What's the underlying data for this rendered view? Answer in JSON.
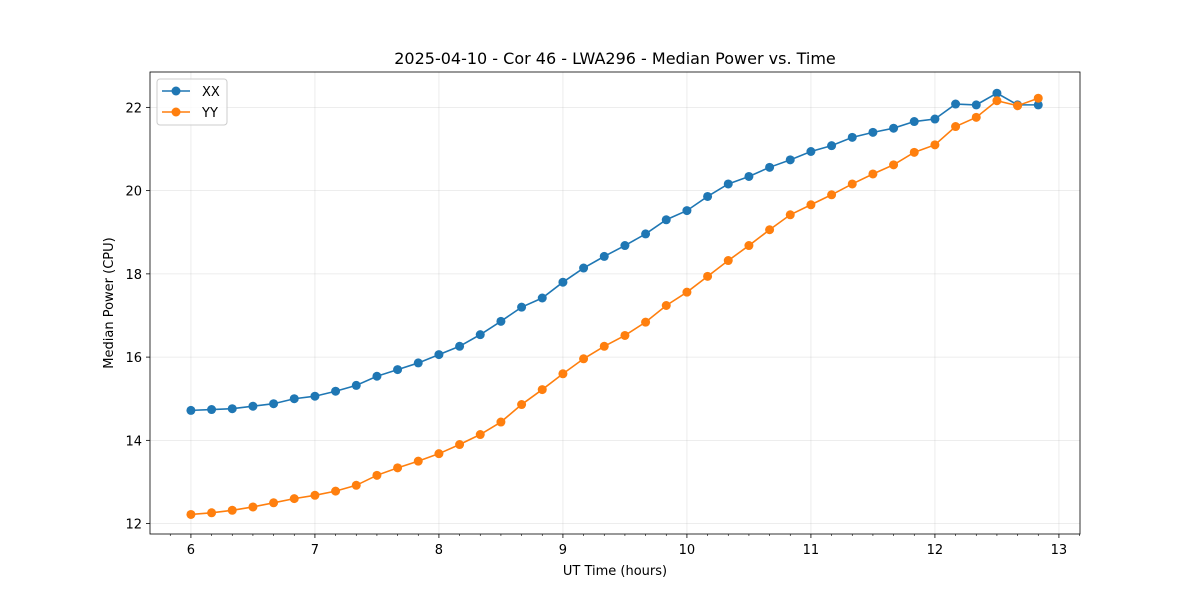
{
  "chart_data": {
    "type": "line",
    "title": "2025-04-10 - Cor 46 - LWA296 - Median Power vs. Time",
    "xlabel": "UT Time (hours)",
    "ylabel": "Median Power (CPU)",
    "xlim": [
      5.67,
      13.17
    ],
    "ylim": [
      11.75,
      22.85
    ],
    "xticks": [
      6,
      7,
      8,
      9,
      10,
      11,
      12,
      13
    ],
    "yticks": [
      12,
      14,
      16,
      18,
      20,
      22
    ],
    "grid": true,
    "legend_position": "top-left",
    "x": [
      6.0,
      6.1667,
      6.3333,
      6.5,
      6.6667,
      6.8333,
      7.0,
      7.1667,
      7.3333,
      7.5,
      7.6667,
      7.8333,
      8.0,
      8.1667,
      8.3333,
      8.5,
      8.6667,
      8.8333,
      9.0,
      9.1667,
      9.3333,
      9.5,
      9.6667,
      9.8333,
      10.0,
      10.1667,
      10.3333,
      10.5,
      10.6667,
      10.8333,
      11.0,
      11.1667,
      11.3333,
      11.5,
      11.6667,
      11.8333,
      12.0,
      12.1667,
      12.3333,
      12.5,
      12.6667,
      12.8333
    ],
    "series": [
      {
        "name": "XX",
        "color": "#1f77b4",
        "values": [
          14.72,
          14.74,
          14.76,
          14.82,
          14.88,
          15.0,
          15.06,
          15.18,
          15.32,
          15.54,
          15.7,
          15.86,
          16.06,
          16.26,
          16.54,
          16.86,
          17.2,
          17.42,
          17.8,
          18.14,
          18.42,
          18.68,
          18.96,
          19.3,
          19.52,
          19.86,
          20.16,
          20.34,
          20.56,
          20.74,
          20.94,
          21.08,
          21.28,
          21.4,
          21.5,
          21.66,
          21.72,
          22.08,
          22.06,
          22.34,
          22.06,
          22.06
        ]
      },
      {
        "name": "YY",
        "color": "#ff7f0e",
        "values": [
          12.22,
          12.26,
          12.32,
          12.4,
          12.5,
          12.6,
          12.68,
          12.78,
          12.92,
          13.16,
          13.34,
          13.5,
          13.68,
          13.9,
          14.14,
          14.44,
          14.86,
          15.22,
          15.6,
          15.96,
          16.26,
          16.52,
          16.84,
          17.24,
          17.56,
          17.94,
          18.32,
          18.68,
          19.06,
          19.42,
          19.66,
          19.9,
          20.16,
          20.4,
          20.62,
          20.92,
          21.1,
          21.54,
          21.76,
          22.16,
          22.04,
          22.22
        ]
      }
    ]
  }
}
